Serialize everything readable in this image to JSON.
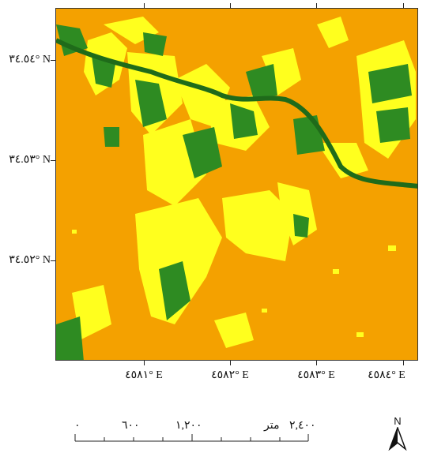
{
  "map": {
    "colors": {
      "background": "#f4a100",
      "vegetation_light": "#ffff1e",
      "vegetation_dark": "#2e8b22",
      "water": "#1f6b1a"
    },
    "lat_labels": [
      "٣٤.٥٤° N",
      "٣٤.٥٣° N",
      "٣٤.٥٢° N"
    ],
    "lon_labels": [
      "٤٥٨١° E",
      "٤٥٨٢° E",
      "٤٥٨٣° E",
      "٤٥٨٤° E"
    ]
  },
  "scale_bar": {
    "labels": [
      "٠",
      "٦٠٠",
      "١,٢٠٠",
      "٢,٤٠٠"
    ],
    "unit": "متر"
  },
  "north_arrow": {
    "label": "N",
    "icon": "north-arrow-icon"
  }
}
